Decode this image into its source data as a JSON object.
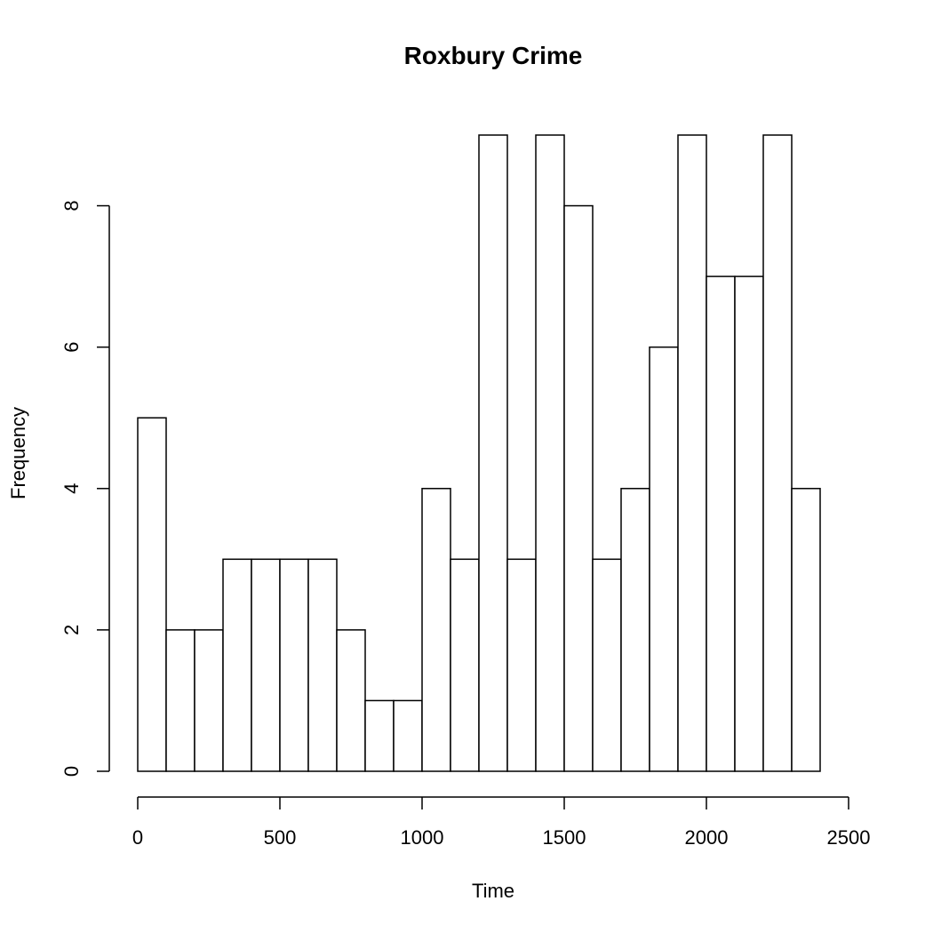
{
  "chart_data": {
    "type": "bar",
    "title": "Roxbury Crime",
    "xlabel": "Time",
    "ylabel": "Frequency",
    "bin_edges": [
      0,
      100,
      200,
      300,
      400,
      500,
      600,
      700,
      800,
      900,
      1000,
      1100,
      1200,
      1300,
      1400,
      1500,
      1600,
      1700,
      1800,
      1900,
      2000,
      2100,
      2200,
      2300,
      2400
    ],
    "values": [
      5,
      2,
      2,
      3,
      3,
      3,
      3,
      2,
      1,
      1,
      4,
      3,
      9,
      3,
      9,
      8,
      3,
      4,
      6,
      9,
      7,
      7,
      9,
      4
    ],
    "xlim": [
      0,
      2500
    ],
    "ylim": [
      0,
      9
    ],
    "x_ticks": [
      0,
      500,
      1000,
      1500,
      2000,
      2500
    ],
    "y_ticks": [
      0,
      2,
      4,
      6,
      8
    ],
    "grid": false,
    "legend": "none",
    "colors": {
      "bar_fill": "#ffffff",
      "bar_stroke": "#000000"
    }
  }
}
